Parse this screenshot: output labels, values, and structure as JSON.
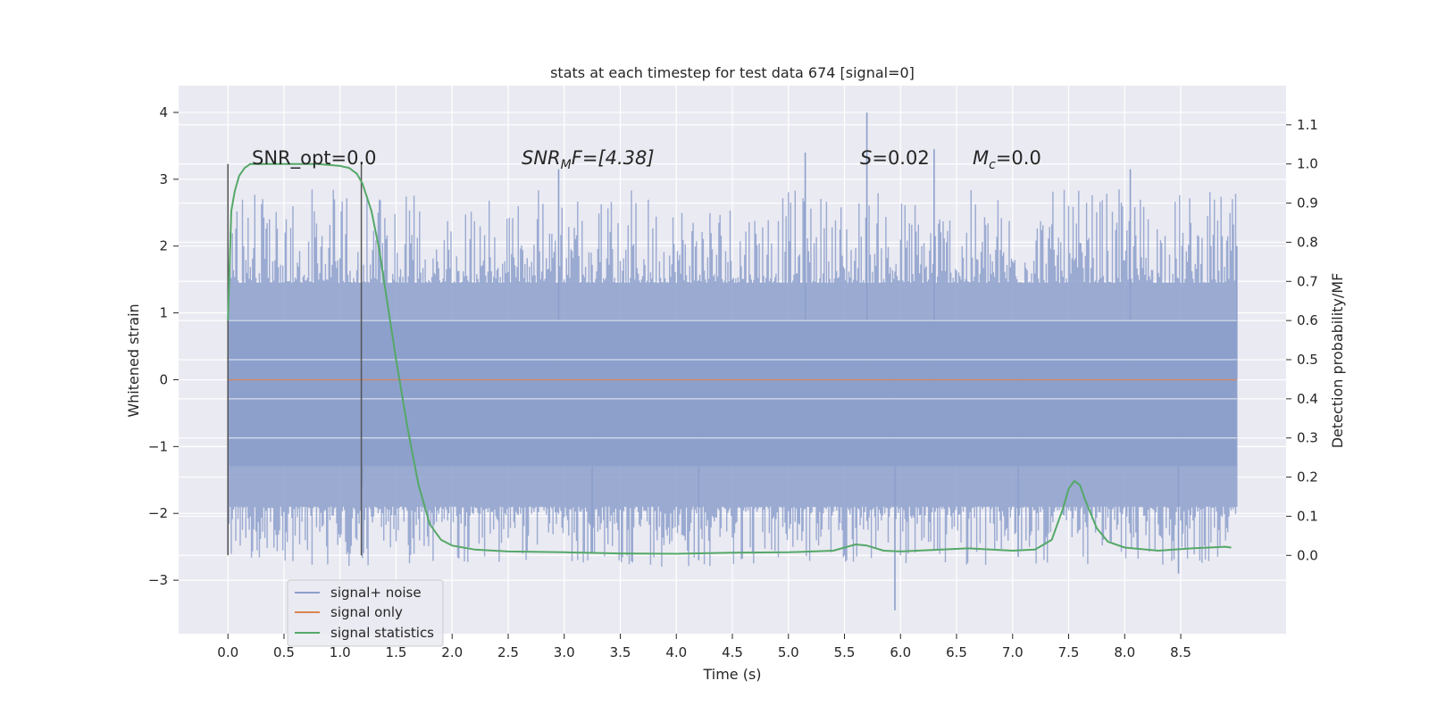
{
  "chart_data": {
    "type": "line",
    "title": "stats at each timestep for test data 674 [signal=0]",
    "xlabel": "Time (s)",
    "ylabel_left": "Whitened strain",
    "ylabel_right": "Detection probability/MF",
    "xlim": [
      -0.44,
      9.44
    ],
    "ylim_left": [
      -3.8,
      4.4
    ],
    "ylim_right": [
      -0.2,
      1.2
    ],
    "x_ticks": [
      "0.0",
      "0.5",
      "1.0",
      "1.5",
      "2.0",
      "2.5",
      "3.0",
      "3.5",
      "4.0",
      "4.5",
      "5.0",
      "5.5",
      "6.0",
      "6.5",
      "7.0",
      "7.5",
      "8.0",
      "8.5"
    ],
    "y_left_ticks": [
      "4",
      "3",
      "2",
      "1",
      "0",
      "−1",
      "−2",
      "−3"
    ],
    "y_right_ticks": [
      "1.1",
      "1.0",
      "0.9",
      "0.8",
      "0.7",
      "0.6",
      "0.5",
      "0.4",
      "0.3",
      "0.2",
      "0.1",
      "0.0"
    ],
    "grid": true,
    "legend_position": "lower-left",
    "annotations": {
      "snr_opt": "SNR_opt=0.0",
      "snr_mf_base": "SNR",
      "snr_mf_sub": "M",
      "snr_mf_rest": "F=[4.38]",
      "s_var": "S",
      "s_rest": "=0.02",
      "mc_var": "M",
      "mc_sub": "c",
      "mc_rest": "=0.0"
    },
    "vertical_lines": [
      0.0,
      1.19
    ],
    "vertical_line_range": [
      0.0,
      1.0
    ],
    "noise_profile": {
      "x_range": [
        0.0,
        9.0
      ],
      "envelope": [
        1.45,
        -1.9
      ],
      "peaks": [
        {
          "x": 0.0,
          "y": -2.6
        },
        {
          "x": 1.2,
          "y": -1.6
        },
        {
          "x": 2.95,
          "y": 3.15
        },
        {
          "x": 3.25,
          "y": -2.6
        },
        {
          "x": 4.2,
          "y": -2.7
        },
        {
          "x": 5.15,
          "y": 3.4
        },
        {
          "x": 5.7,
          "y": 4.0
        },
        {
          "x": 5.95,
          "y": -3.45
        },
        {
          "x": 6.3,
          "y": 3.45
        },
        {
          "x": 7.05,
          "y": -2.65
        },
        {
          "x": 8.05,
          "y": 3.15
        },
        {
          "x": 8.48,
          "y": -2.9
        },
        {
          "x": 9.0,
          "y": 2.0
        }
      ]
    },
    "series": [
      {
        "name": "signal+ noise",
        "color": "#8c9fcb",
        "axis": "left"
      },
      {
        "name": "signal only",
        "color": "#dd8452",
        "axis": "left",
        "x": [
          0.0,
          9.0
        ],
        "y": [
          0.0,
          0.0
        ]
      },
      {
        "name": "signal statistics",
        "color": "#55a868",
        "axis": "right",
        "x": [
          0.0,
          0.03,
          0.06,
          0.1,
          0.15,
          0.2,
          0.3,
          0.5,
          0.8,
          1.0,
          1.08,
          1.15,
          1.2,
          1.28,
          1.35,
          1.42,
          1.5,
          1.6,
          1.7,
          1.8,
          1.9,
          2.0,
          2.2,
          2.5,
          3.0,
          3.5,
          4.0,
          4.5,
          5.0,
          5.4,
          5.6,
          5.7,
          5.85,
          6.0,
          6.3,
          6.6,
          7.0,
          7.2,
          7.35,
          7.45,
          7.5,
          7.55,
          7.6,
          7.65,
          7.75,
          7.85,
          8.0,
          8.3,
          8.6,
          8.9,
          8.95
        ],
        "y": [
          0.6,
          0.88,
          0.93,
          0.97,
          0.99,
          1.0,
          1.0,
          1.0,
          1.0,
          0.995,
          0.99,
          0.975,
          0.95,
          0.88,
          0.78,
          0.65,
          0.5,
          0.33,
          0.18,
          0.08,
          0.04,
          0.025,
          0.015,
          0.01,
          0.008,
          0.005,
          0.004,
          0.007,
          0.008,
          0.012,
          0.028,
          0.025,
          0.012,
          0.01,
          0.014,
          0.018,
          0.012,
          0.015,
          0.04,
          0.12,
          0.17,
          0.19,
          0.18,
          0.14,
          0.07,
          0.035,
          0.02,
          0.012,
          0.018,
          0.022,
          0.02
        ]
      }
    ]
  }
}
